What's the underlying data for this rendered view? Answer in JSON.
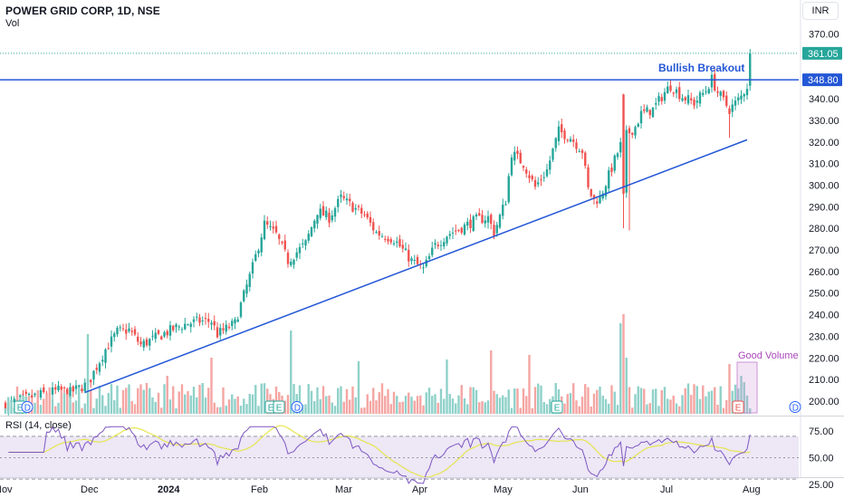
{
  "header": {
    "symbol": "POWER GRID CORP, 1D, NSE",
    "volume_label": "Vol",
    "currency": "INR"
  },
  "colors": {
    "up": "#26a69a",
    "down": "#ef5350",
    "vol_up": "#8fd1c9",
    "vol_down": "#f4a6a3",
    "trendline": "#2457d6",
    "breakout_line": "#2457d6",
    "rsi_line": "#7e57c2",
    "rsi_ma": "#e5e54f",
    "rsi_band": "#ede7f6",
    "annotation_text": "#2457d6",
    "good_volume_text": "#ab47bc",
    "last_price_bg": "#26a69a",
    "level_price_bg": "#2457d6"
  },
  "annotations": {
    "breakout_text": "Bullish Breakout",
    "volume_text": "Good Volume",
    "last_price_label": "361.05",
    "level_label": "348.80"
  },
  "rsi": {
    "title": "RSI (14, close)",
    "ticks": [
      "75.00",
      "50.00",
      "25.00"
    ]
  },
  "events": {
    "earnings_label": "E",
    "dividend_label": "D"
  },
  "chart_data": {
    "type": "candlestick",
    "x_ticks": [
      "Nov",
      "Dec",
      "2024",
      "Feb",
      "Mar",
      "Apr",
      "May",
      "Jun",
      "Jul",
      "Aug"
    ],
    "y_ticks": [
      "370.00",
      "360.00",
      "350.00",
      "340.00",
      "330.00",
      "320.00",
      "310.00",
      "300.00",
      "290.00",
      "280.00",
      "270.00",
      "260.00",
      "250.00",
      "240.00",
      "230.00",
      "220.00",
      "210.00",
      "200.00"
    ],
    "ylim": [
      195,
      373
    ],
    "last_price": 361.05,
    "resistance_level": 348.8,
    "close_path": [
      [
        0,
        198
      ],
      [
        6,
        201
      ],
      [
        12,
        203
      ],
      [
        18,
        205
      ],
      [
        22,
        204
      ],
      [
        28,
        208
      ],
      [
        34,
        224
      ],
      [
        38,
        232
      ],
      [
        42,
        233
      ],
      [
        46,
        226
      ],
      [
        52,
        230
      ],
      [
        58,
        234
      ],
      [
        62,
        236
      ],
      [
        66,
        237
      ],
      [
        70,
        237
      ],
      [
        72,
        231
      ],
      [
        78,
        236
      ],
      [
        84,
        262
      ],
      [
        88,
        282
      ],
      [
        92,
        277
      ],
      [
        96,
        265
      ],
      [
        102,
        273
      ],
      [
        106,
        288
      ],
      [
        110,
        285
      ],
      [
        114,
        294
      ],
      [
        118,
        290
      ],
      [
        122,
        286
      ],
      [
        126,
        278
      ],
      [
        132,
        275
      ],
      [
        138,
        265
      ],
      [
        142,
        261
      ],
      [
        146,
        272
      ],
      [
        150,
        277
      ],
      [
        156,
        281
      ],
      [
        160,
        284
      ],
      [
        164,
        285
      ],
      [
        166,
        278
      ],
      [
        170,
        293
      ],
      [
        172,
        315
      ],
      [
        176,
        310
      ],
      [
        180,
        299
      ],
      [
        184,
        307
      ],
      [
        188,
        325
      ],
      [
        192,
        322
      ],
      [
        196,
        316
      ],
      [
        198,
        298
      ],
      [
        200,
        293
      ],
      [
        202,
        294
      ],
      [
        206,
        308
      ],
      [
        210,
        322
      ],
      [
        214,
        327
      ],
      [
        216,
        333
      ],
      [
        220,
        335
      ],
      [
        224,
        343
      ],
      [
        226,
        346
      ],
      [
        230,
        341
      ],
      [
        234,
        338
      ],
      [
        238,
        344
      ],
      [
        240,
        349
      ],
      [
        242,
        343
      ],
      [
        244,
        339
      ],
      [
        246,
        335
      ],
      [
        250,
        341
      ],
      [
        252,
        346
      ],
      [
        254,
        361
      ]
    ],
    "trendline": {
      "from": [
        "2023-12-01",
        204
      ],
      "to": [
        "2024-07-29",
        321
      ]
    },
    "volume_bars": 254,
    "rsi_range": [
      25,
      80
    ]
  }
}
